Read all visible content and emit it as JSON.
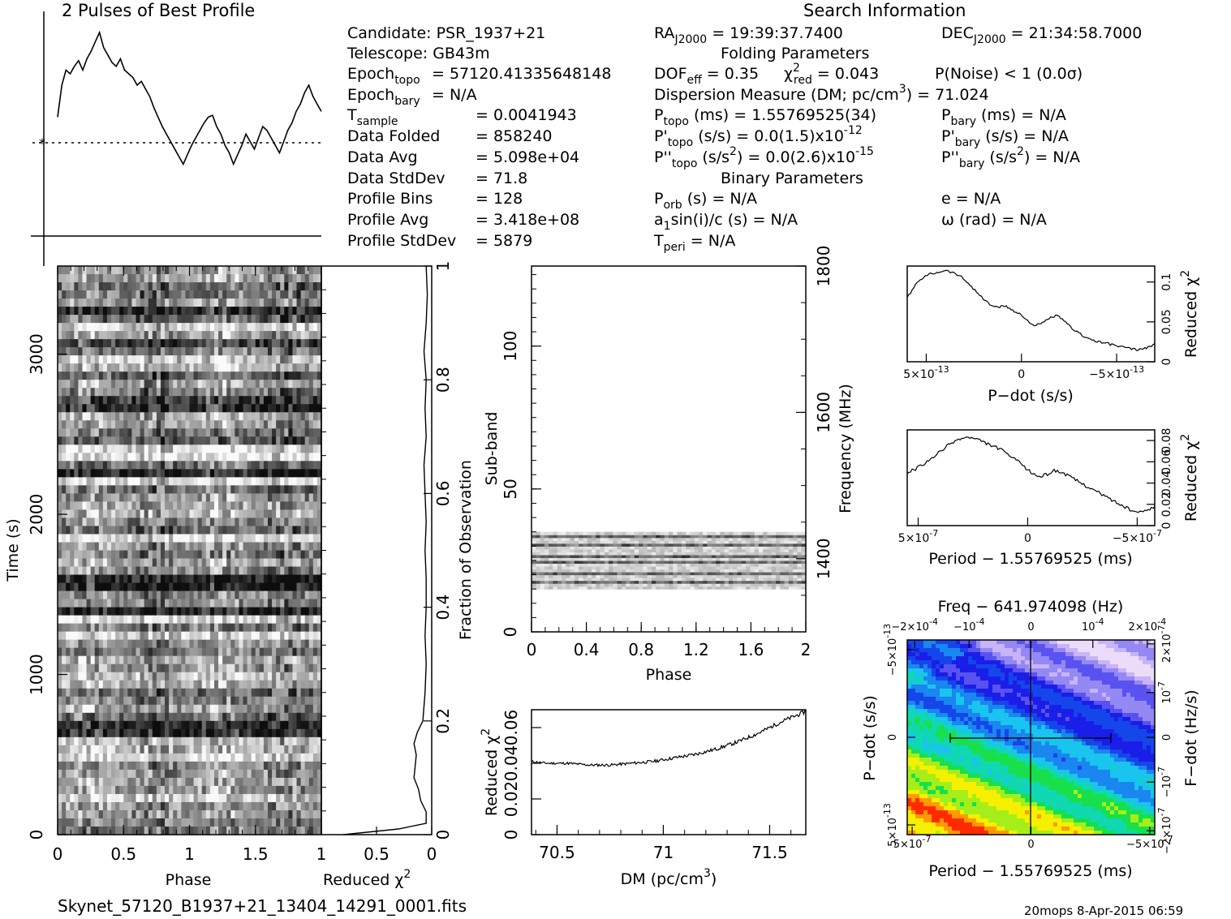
{
  "colors": {
    "ink": "#000000",
    "background": "#ffffff"
  },
  "header": {
    "profile_title": "2 Pulses of Best Profile",
    "search_title": "Search Information",
    "candidate": "Candidate:  PSR_1937+21",
    "telescope": "Telescope:  GB43m",
    "epoch_topo": "= 57120.41335648148",
    "epoch_bary": "= N/A",
    "tsample": "=  0.0041943",
    "data_folded": "=  858240",
    "data_avg": "=  5.098e+04",
    "data_stddev": "=  71.8",
    "profile_bins": "=  128",
    "profile_avg": "=  3.418e+08",
    "profile_stddev": "=  5879",
    "ra": "= 19:39:37.7400",
    "dec": "= 21:34:58.7000",
    "folding_title": "Folding Parameters",
    "dof": "= 0.35",
    "chi_red": "= 0.043",
    "pnoise": "P(Noise) < 1   (0.0σ)",
    "dm": "Dispersion Measure (DM; pc/cm",
    "dm_val": ") = 71.024",
    "ptopo": "(ms) =  1.55769525(34)",
    "pbary": "(ms) = N/A",
    "pdtopo": "(s/s) = 0.0(1.5)x10",
    "pdtopo_exp": "-12",
    "pdbary": "(s/s) = N/A",
    "pddtopo": "(s/s",
    "pddtopo_tail": ") = 0.0(2.6)x10",
    "pddtopo_exp": "-15",
    "pddbary": "(s/s",
    "pddbary_tail": ") = N/A",
    "binary_title": "Binary Parameters",
    "porb": "(s) = N/A",
    "asini": "sin(i)/c (s) = N/A",
    "tperi": "= N/A",
    "ecc": "e = N/A",
    "omega": "ω (rad) = N/A"
  },
  "labels": {
    "data_folded": "Data Folded",
    "data_avg": "Data Avg",
    "data_stddev": "Data StdDev",
    "profile_bins": "Profile Bins",
    "profile_avg": "Profile Avg",
    "profile_stddev": "Profile StdDev",
    "epoch": "Epoch",
    "topo": "topo",
    "bary": "bary",
    "sample": "sample",
    "T": "T",
    "RA": "RA",
    "DEC": "DEC",
    "J2000": "J2000",
    "DOF": "DOF",
    "eff": "eff",
    "chi": "χ",
    "red": "red",
    "P": "P",
    "Pp": "P'",
    "Ppp": "P''",
    "orb": "orb",
    "a": "a",
    "one": "1",
    "peri": "peri",
    "sup2": "2",
    "sup3": "3"
  },
  "footer": {
    "filename": "Skynet_57120_B1937+21_13404_14291_0001.fits",
    "stamp": "20mops  8-Apr-2015 06:59"
  },
  "chart_data": [
    {
      "id": "profile",
      "type": "line",
      "title": "2 Pulses of Best Profile",
      "x_range": [
        0,
        2
      ],
      "values": [
        0.55,
        0.72,
        0.8,
        0.78,
        0.82,
        0.85,
        0.8,
        0.86,
        0.9,
        0.95,
        1.0,
        0.92,
        0.88,
        0.84,
        0.82,
        0.86,
        0.8,
        0.78,
        0.76,
        0.72,
        0.74,
        0.7,
        0.66,
        0.6,
        0.55,
        0.5,
        0.46,
        0.42,
        0.38,
        0.34,
        0.3,
        0.35,
        0.4,
        0.44,
        0.48,
        0.52,
        0.55,
        0.56,
        0.5,
        0.46,
        0.4,
        0.36,
        0.3,
        0.35,
        0.4,
        0.46,
        0.42,
        0.38,
        0.44,
        0.5,
        0.48,
        0.44,
        0.4,
        0.36,
        0.42,
        0.48,
        0.52,
        0.58,
        0.62,
        0.68,
        0.72,
        0.66,
        0.62,
        0.58
      ],
      "mean_line": 0.58
    },
    {
      "id": "time_vs_phase",
      "type": "heatmap",
      "xlabel": "Phase",
      "ylabel": "Time (s)",
      "x_ticks": [
        "0",
        "0.5",
        "1",
        "1.5"
      ],
      "y_ticks": [
        "0",
        "1000",
        "2000",
        "3000"
      ],
      "x_range": [
        0,
        2
      ],
      "y_range": [
        0,
        3550
      ],
      "rows": 70,
      "cols": 64
    },
    {
      "id": "chi_vs_time",
      "type": "line",
      "xlabel": "Reduced χ",
      "ylabel": "Fraction of Observation",
      "x_ticks": [
        "1",
        "0.5",
        "0"
      ],
      "y_ticks": [
        "0",
        "0.2",
        "0.4",
        "0.6",
        "0.8",
        "1"
      ],
      "x_range": [
        1,
        0
      ],
      "fraction": [
        0.0,
        0.01,
        0.02,
        0.04,
        0.06,
        0.08,
        0.1,
        0.12,
        0.14,
        0.16,
        0.18,
        0.2,
        0.25,
        0.3,
        0.35,
        0.4,
        0.45,
        0.5,
        0.55,
        0.6,
        0.65,
        0.7,
        0.75,
        0.8,
        0.85,
        0.9,
        0.95,
        1.0
      ],
      "chi": [
        0.8,
        0.3,
        0.05,
        0.05,
        0.1,
        0.12,
        0.16,
        0.15,
        0.14,
        0.16,
        0.13,
        0.08,
        0.06,
        0.05,
        0.06,
        0.05,
        0.05,
        0.06,
        0.05,
        0.06,
        0.07,
        0.05,
        0.06,
        0.05,
        0.07,
        0.05,
        0.04,
        0.05
      ]
    },
    {
      "id": "subband_vs_phase",
      "type": "heatmap",
      "xlabel": "Phase",
      "ylabel": "Sub-band",
      "y2label": "Frequency (MHz)",
      "x_ticks": [
        "0",
        "0.4",
        "0.8",
        "1.2",
        "1.6",
        "2"
      ],
      "y_ticks": [
        "0",
        "50",
        "100"
      ],
      "y2_ticks": [
        "1400",
        "1600",
        "1800"
      ],
      "x_range": [
        0,
        2
      ],
      "y_range": [
        0,
        128
      ],
      "band_range": [
        15,
        35
      ]
    },
    {
      "id": "chi_vs_dm",
      "type": "line",
      "xlabel": "DM (pc/cm",
      "xlabel_sup": "3",
      "xlabel_tail": ")",
      "ylabel": "Reduced χ",
      "x_ticks": [
        "70.5",
        "71",
        "71.5"
      ],
      "y_ticks": [
        "0",
        "0.02",
        "0.04",
        "0.06"
      ],
      "x_range": [
        70.38,
        71.67
      ],
      "y_range": [
        0,
        0.07
      ],
      "x": [
        70.38,
        70.45,
        70.55,
        70.65,
        70.75,
        70.85,
        70.95,
        71.05,
        71.15,
        71.25,
        71.35,
        71.45,
        71.55,
        71.67
      ],
      "y": [
        0.041,
        0.04,
        0.04,
        0.039,
        0.039,
        0.04,
        0.041,
        0.043,
        0.045,
        0.048,
        0.052,
        0.057,
        0.063,
        0.069
      ]
    },
    {
      "id": "chi_vs_pdot",
      "type": "line",
      "xlabel": "P−dot (s/s)",
      "ylabel": "Reduced χ",
      "x_ticks": [
        "5×10",
        "0",
        "−5×10"
      ],
      "x_tick_exp": "-13",
      "y_ticks": [
        "0",
        "0.05",
        "0.1"
      ],
      "x_range": [
        6e-13,
        -7e-13
      ],
      "y_range": [
        0,
        0.12
      ],
      "y": [
        0.08,
        0.095,
        0.105,
        0.11,
        0.112,
        0.115,
        0.112,
        0.108,
        0.1,
        0.09,
        0.08,
        0.072,
        0.068,
        0.07,
        0.065,
        0.06,
        0.052,
        0.045,
        0.048,
        0.055,
        0.058,
        0.05,
        0.042,
        0.035,
        0.03,
        0.026,
        0.024,
        0.022,
        0.02,
        0.018,
        0.016,
        0.015,
        0.018,
        0.022
      ]
    },
    {
      "id": "chi_vs_period",
      "type": "line",
      "xlabel": "Period − 1.55769525 (ms)",
      "ylabel": "Reduced χ",
      "x_ticks": [
        "5×10",
        "0",
        "−5×10"
      ],
      "x_tick_exp": "-7",
      "y_ticks": [
        "0",
        "0.02",
        "0.04",
        "0.06",
        "0.08"
      ],
      "x_range": [
        5.5e-07,
        -5.8e-07
      ],
      "y_range": [
        0,
        0.09
      ],
      "y": [
        0.05,
        0.053,
        0.057,
        0.062,
        0.068,
        0.074,
        0.079,
        0.082,
        0.083,
        0.081,
        0.078,
        0.075,
        0.072,
        0.067,
        0.062,
        0.056,
        0.05,
        0.046,
        0.048,
        0.052,
        0.05,
        0.046,
        0.042,
        0.038,
        0.034,
        0.03,
        0.026,
        0.022,
        0.018,
        0.014,
        0.012,
        0.015,
        0.018
      ]
    },
    {
      "id": "period_pdot_plane",
      "type": "heatmap",
      "title": "Freq − 641.974098 (Hz)",
      "xlabel": "Period − 1.55769525 (ms)",
      "ylabel": "P−dot (s/s)",
      "y2label": "F−dot (Hz/s)",
      "x_ticks": [
        "5×10",
        "0",
        "−5×10"
      ],
      "x_tick_exp": "-7",
      "top_ticks": [
        "−2×10",
        "−10",
        "0",
        "10",
        "2×10"
      ],
      "top_tick_exp": "-4",
      "y_ticks": [
        "5×10",
        "0",
        "−5×10"
      ],
      "y_tick_exp": "-13",
      "y2_ticks": [
        "−2×10",
        "−10",
        "0",
        "10",
        "2×10"
      ],
      "y2_tick_exp": "-7",
      "palette": [
        "#ff2a00",
        "#ff9a00",
        "#f6f000",
        "#a6ee1a",
        "#17e04a",
        "#10d8b0",
        "#19c4ee",
        "#1a86f0",
        "#1546ea",
        "#1a1ee8",
        "#5a52f0",
        "#9488f4",
        "#c8b4f6",
        "#ecdcfa"
      ]
    }
  ]
}
